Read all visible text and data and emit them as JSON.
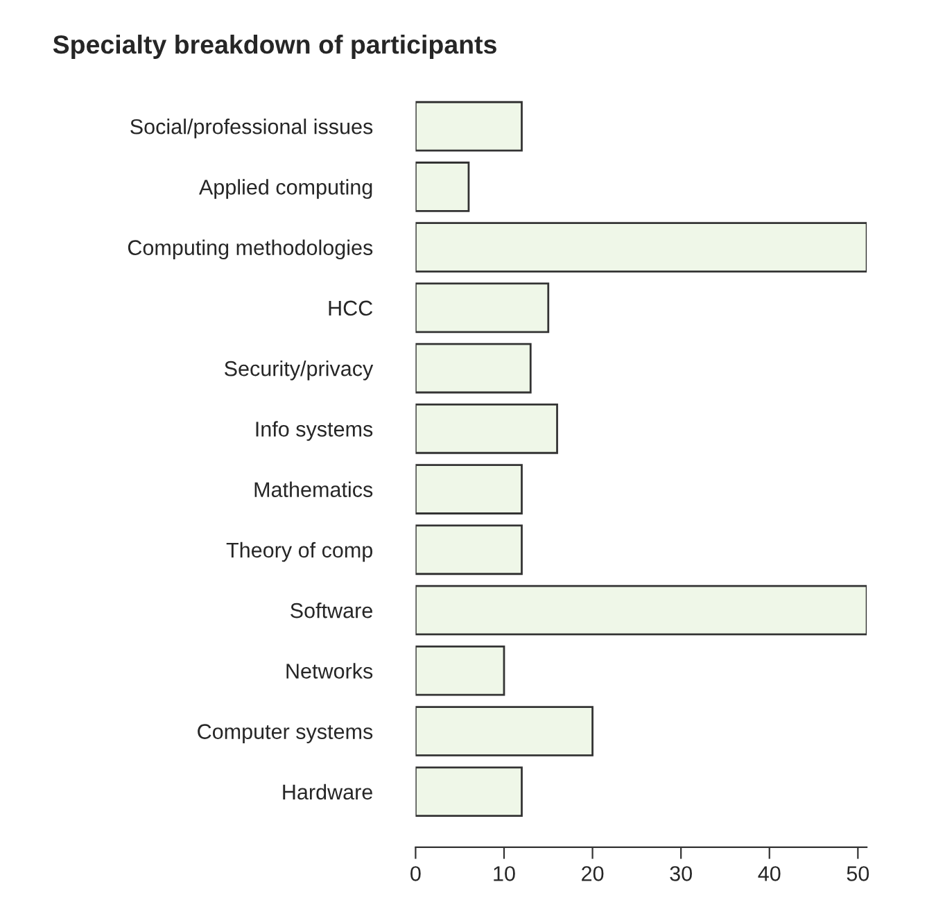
{
  "chart_data": {
    "type": "bar",
    "orientation": "horizontal",
    "title": "Specialty breakdown of participants",
    "categories": [
      "Social/professional issues",
      "Applied computing",
      "Computing methodologies",
      "HCC",
      "Security/privacy",
      "Info systems",
      "Mathematics",
      "Theory of comp",
      "Software",
      "Networks",
      "Computer systems",
      "Hardware"
    ],
    "values": [
      12,
      6,
      51,
      15,
      13,
      16,
      12,
      12,
      51,
      10,
      20,
      12
    ],
    "color": "#eff7e8",
    "xlim": [
      0,
      51
    ],
    "xticks": [
      0,
      10,
      20,
      30,
      40,
      50
    ],
    "grid": false,
    "legend": false
  }
}
